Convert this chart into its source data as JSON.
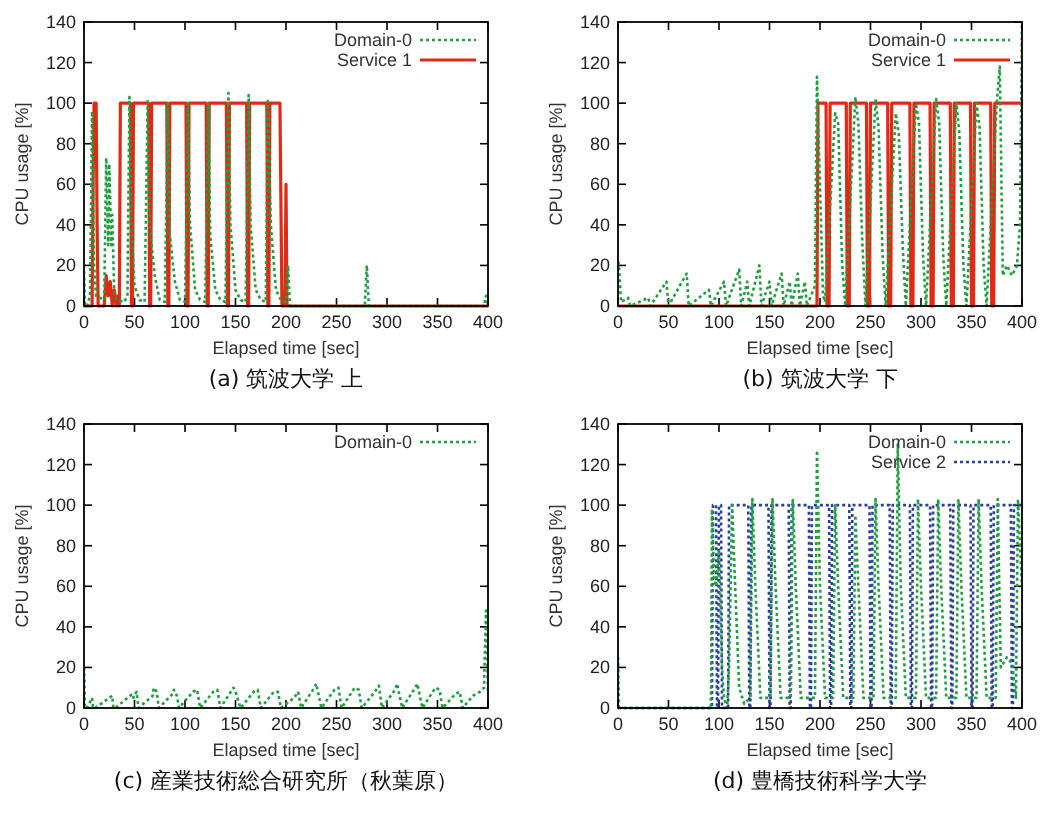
{
  "chart_data": [
    {
      "type": "line",
      "title": "(a) 筑波大学 上",
      "xlabel": "Elapsed time [sec]",
      "ylabel": "CPU usage [%]",
      "xlim": [
        0,
        400
      ],
      "ylim": [
        0,
        140
      ],
      "xticks": [
        0,
        50,
        100,
        150,
        200,
        250,
        300,
        350,
        400
      ],
      "yticks": [
        0,
        20,
        40,
        60,
        80,
        100,
        120,
        140
      ],
      "legend": "top right",
      "series": [
        {
          "name": "Domain-0",
          "color": "#1fa040",
          "line_style": "dotted",
          "x": [
            0,
            1,
            3,
            6,
            8,
            10,
            12,
            20,
            22,
            24,
            25,
            27,
            28,
            30,
            33,
            40,
            43,
            45,
            47,
            50,
            55,
            60,
            63,
            65,
            70,
            75,
            80,
            83,
            85,
            90,
            95,
            100,
            103,
            105,
            110,
            115,
            120,
            123,
            125,
            130,
            135,
            140,
            143,
            145,
            150,
            155,
            160,
            163,
            165,
            170,
            175,
            180,
            182,
            185,
            190,
            195,
            200,
            202,
            204,
            278,
            280,
            282,
            396,
            398,
            400
          ],
          "values": [
            17,
            0,
            0,
            5,
            96,
            20,
            5,
            3,
            73,
            30,
            70,
            30,
            45,
            5,
            3,
            2,
            5,
            103,
            40,
            10,
            3,
            2,
            102,
            40,
            15,
            3,
            2,
            100,
            35,
            12,
            3,
            2,
            100,
            40,
            8,
            3,
            2,
            100,
            35,
            8,
            3,
            2,
            105,
            40,
            8,
            3,
            2,
            104,
            40,
            8,
            3,
            2,
            101,
            40,
            8,
            3,
            2,
            20,
            0,
            0,
            20,
            0,
            0,
            5,
            0
          ]
        },
        {
          "name": "Service 1",
          "color": "#e02a14",
          "line_style": "solid",
          "x": [
            0,
            8,
            9,
            10,
            12,
            13,
            14,
            20,
            22,
            24,
            26,
            28,
            30,
            32,
            34,
            35,
            36,
            46,
            47,
            48,
            49,
            64,
            65,
            66,
            67,
            82,
            83,
            84,
            85,
            101,
            102,
            103,
            104,
            121,
            122,
            123,
            124,
            141,
            142,
            143,
            144,
            161,
            162,
            163,
            164,
            181,
            182,
            183,
            184,
            194,
            196,
            198,
            199,
            200,
            201,
            203,
            400
          ],
          "values": [
            0,
            0,
            60,
            100,
            100,
            40,
            0,
            0,
            15,
            5,
            12,
            0,
            8,
            0,
            5,
            0,
            100,
            100,
            0,
            0,
            100,
            100,
            0,
            0,
            100,
            100,
            0,
            0,
            100,
            100,
            0,
            0,
            100,
            100,
            0,
            0,
            100,
            100,
            0,
            0,
            100,
            100,
            0,
            0,
            100,
            100,
            0,
            0,
            100,
            100,
            0,
            0,
            0,
            60,
            0,
            0,
            0
          ]
        }
      ]
    },
    {
      "type": "line",
      "title": "(b) 筑波大学 下",
      "xlabel": "Elapsed time [sec]",
      "ylabel": "CPU usage [%]",
      "xlim": [
        0,
        400
      ],
      "ylim": [
        0,
        140
      ],
      "xticks": [
        0,
        50,
        100,
        150,
        200,
        250,
        300,
        350,
        400
      ],
      "yticks": [
        0,
        20,
        40,
        60,
        80,
        100,
        120,
        140
      ],
      "legend": "top right",
      "series": [
        {
          "name": "Domain-0",
          "color": "#1fa040",
          "line_style": "dotted",
          "x": [
            0,
            1,
            3,
            10,
            12,
            30,
            32,
            48,
            50,
            68,
            70,
            90,
            92,
            105,
            107,
            120,
            122,
            128,
            130,
            140,
            142,
            150,
            152,
            162,
            164,
            170,
            172,
            178,
            180,
            185,
            187,
            195,
            197,
            200,
            203,
            205,
            215,
            218,
            222,
            225,
            235,
            238,
            242,
            245,
            255,
            258,
            262,
            265,
            275,
            278,
            282,
            285,
            295,
            298,
            302,
            305,
            315,
            318,
            322,
            325,
            335,
            338,
            342,
            345,
            355,
            358,
            362,
            365,
            375,
            378,
            381,
            385,
            390,
            395,
            398,
            400
          ],
          "values": [
            22,
            20,
            2,
            4,
            0,
            4,
            0,
            12,
            0,
            16,
            0,
            8,
            0,
            12,
            0,
            18,
            0,
            12,
            0,
            20,
            0,
            12,
            0,
            16,
            0,
            12,
            0,
            16,
            0,
            12,
            0,
            10,
            113,
            60,
            5,
            2,
            95,
            90,
            20,
            0,
            103,
            90,
            30,
            0,
            102,
            88,
            25,
            0,
            95,
            85,
            28,
            0,
            100,
            90,
            25,
            0,
            102,
            90,
            25,
            0,
            100,
            85,
            20,
            0,
            100,
            88,
            20,
            0,
            100,
            118,
            15,
            20,
            15,
            20,
            40,
            140
          ]
        },
        {
          "name": "Service 1",
          "color": "#e02a14",
          "line_style": "solid",
          "x": [
            0,
            197,
            198,
            206,
            207,
            209,
            210,
            226,
            227,
            229,
            230,
            246,
            247,
            249,
            250,
            267,
            268,
            270,
            271,
            289,
            290,
            292,
            293,
            309,
            310,
            312,
            313,
            329,
            330,
            332,
            333,
            349,
            350,
            352,
            353,
            369,
            370,
            372,
            373,
            400
          ],
          "values": [
            0,
            0,
            100,
            100,
            0,
            0,
            100,
            100,
            0,
            0,
            100,
            100,
            0,
            0,
            100,
            100,
            0,
            0,
            100,
            100,
            0,
            0,
            100,
            100,
            0,
            0,
            100,
            100,
            0,
            0,
            100,
            100,
            0,
            0,
            100,
            100,
            0,
            0,
            100,
            100
          ]
        }
      ]
    },
    {
      "type": "line",
      "title": "(c) 産業技術総合研究所（秋葉原）",
      "xlabel": "Elapsed time [sec]",
      "ylabel": "CPU usage [%]",
      "xlim": [
        0,
        400
      ],
      "ylim": [
        0,
        140
      ],
      "xticks": [
        0,
        50,
        100,
        150,
        200,
        250,
        300,
        350,
        400
      ],
      "yticks": [
        0,
        20,
        40,
        60,
        80,
        100,
        120,
        140
      ],
      "legend": "top right",
      "series": [
        {
          "name": "Domain-0",
          "color": "#1fa040",
          "line_style": "dotted",
          "x": [
            0,
            1,
            3,
            8,
            9,
            11,
            28,
            29,
            31,
            48,
            49,
            52,
            54,
            68,
            69,
            72,
            74,
            88,
            89,
            92,
            94,
            108,
            112,
            115,
            128,
            132,
            135,
            148,
            150,
            155,
            168,
            172,
            175,
            188,
            192,
            195,
            208,
            212,
            215,
            228,
            230,
            235,
            248,
            252,
            255,
            268,
            272,
            275,
            288,
            292,
            295,
            308,
            310,
            315,
            328,
            330,
            335,
            348,
            352,
            355,
            368,
            372,
            375,
            385,
            392,
            396,
            398,
            400
          ],
          "values": [
            20,
            0,
            0,
            5,
            0,
            0,
            6,
            0,
            0,
            7,
            5,
            8,
            0,
            6,
            10,
            8,
            0,
            7,
            9,
            6,
            0,
            8,
            9,
            0,
            8,
            9,
            0,
            10,
            8,
            0,
            8,
            9,
            0,
            8,
            8,
            0,
            5,
            8,
            0,
            10,
            12,
            0,
            9,
            10,
            0,
            10,
            9,
            0,
            8,
            11,
            0,
            9,
            12,
            0,
            10,
            12,
            0,
            10,
            9,
            0,
            7,
            8,
            0,
            6,
            8,
            10,
            48,
            8
          ]
        }
      ]
    },
    {
      "type": "line",
      "title": "(d) 豊橋技術科学大学",
      "xlabel": "Elapsed time [sec]",
      "ylabel": "CPU usage [%]",
      "xlim": [
        0,
        400
      ],
      "ylim": [
        0,
        140
      ],
      "xticks": [
        0,
        50,
        100,
        150,
        200,
        250,
        300,
        350,
        400
      ],
      "yticks": [
        0,
        20,
        40,
        60,
        80,
        100,
        120,
        140
      ],
      "legend": "top right",
      "series": [
        {
          "name": "Domain-0",
          "color": "#1fa040",
          "line_style": "dotted",
          "x": [
            0,
            1,
            3,
            92,
            93,
            95,
            97,
            100,
            103,
            105,
            108,
            110,
            113,
            116,
            120,
            125,
            131,
            133,
            136,
            141,
            151,
            153,
            156,
            161,
            171,
            173,
            176,
            181,
            195,
            197,
            200,
            205,
            213,
            215,
            218,
            223,
            233,
            235,
            238,
            243,
            253,
            255,
            258,
            263,
            275,
            277,
            280,
            285,
            295,
            297,
            300,
            305,
            315,
            317,
            320,
            325,
            335,
            337,
            340,
            345,
            355,
            357,
            360,
            365,
            374,
            376,
            379,
            385,
            390,
            394,
            396,
            398,
            400
          ],
          "values": [
            25,
            0,
            0,
            0,
            98,
            65,
            60,
            78,
            20,
            5,
            0,
            20,
            100,
            60,
            10,
            2,
            5,
            103,
            60,
            5,
            5,
            103,
            60,
            5,
            5,
            103,
            60,
            5,
            5,
            127,
            60,
            5,
            5,
            100,
            60,
            5,
            5,
            95,
            60,
            5,
            5,
            103,
            60,
            5,
            5,
            130,
            60,
            5,
            5,
            103,
            60,
            5,
            5,
            103,
            60,
            5,
            5,
            103,
            60,
            5,
            5,
            103,
            60,
            5,
            5,
            103,
            20,
            25,
            22,
            5,
            103,
            80,
            60
          ]
        },
        {
          "name": "Service 2",
          "color": "#2a3fa0",
          "line_style": "dotted",
          "x": [
            0,
            93,
            94,
            97,
            98,
            99,
            100,
            102,
            103,
            109,
            110,
            129,
            130,
            131,
            132,
            149,
            150,
            151,
            152,
            169,
            170,
            171,
            172,
            189,
            190,
            191,
            192,
            209,
            210,
            211,
            212,
            229,
            230,
            231,
            232,
            249,
            250,
            251,
            252,
            269,
            270,
            271,
            272,
            289,
            290,
            291,
            292,
            309,
            310,
            311,
            312,
            329,
            330,
            331,
            332,
            349,
            350,
            351,
            352,
            369,
            370,
            371,
            372,
            389,
            390,
            391,
            392,
            400
          ],
          "values": [
            0,
            0,
            100,
            100,
            0,
            0,
            100,
            100,
            0,
            0,
            100,
            100,
            0,
            0,
            100,
            100,
            0,
            0,
            100,
            100,
            0,
            0,
            100,
            100,
            0,
            0,
            100,
            100,
            0,
            0,
            100,
            100,
            0,
            0,
            100,
            100,
            0,
            0,
            100,
            100,
            0,
            0,
            100,
            100,
            0,
            0,
            100,
            100,
            0,
            0,
            100,
            100,
            0,
            0,
            100,
            100,
            0,
            0,
            100,
            100,
            0,
            0,
            100,
            100,
            0,
            0,
            100,
            100
          ]
        }
      ]
    }
  ]
}
